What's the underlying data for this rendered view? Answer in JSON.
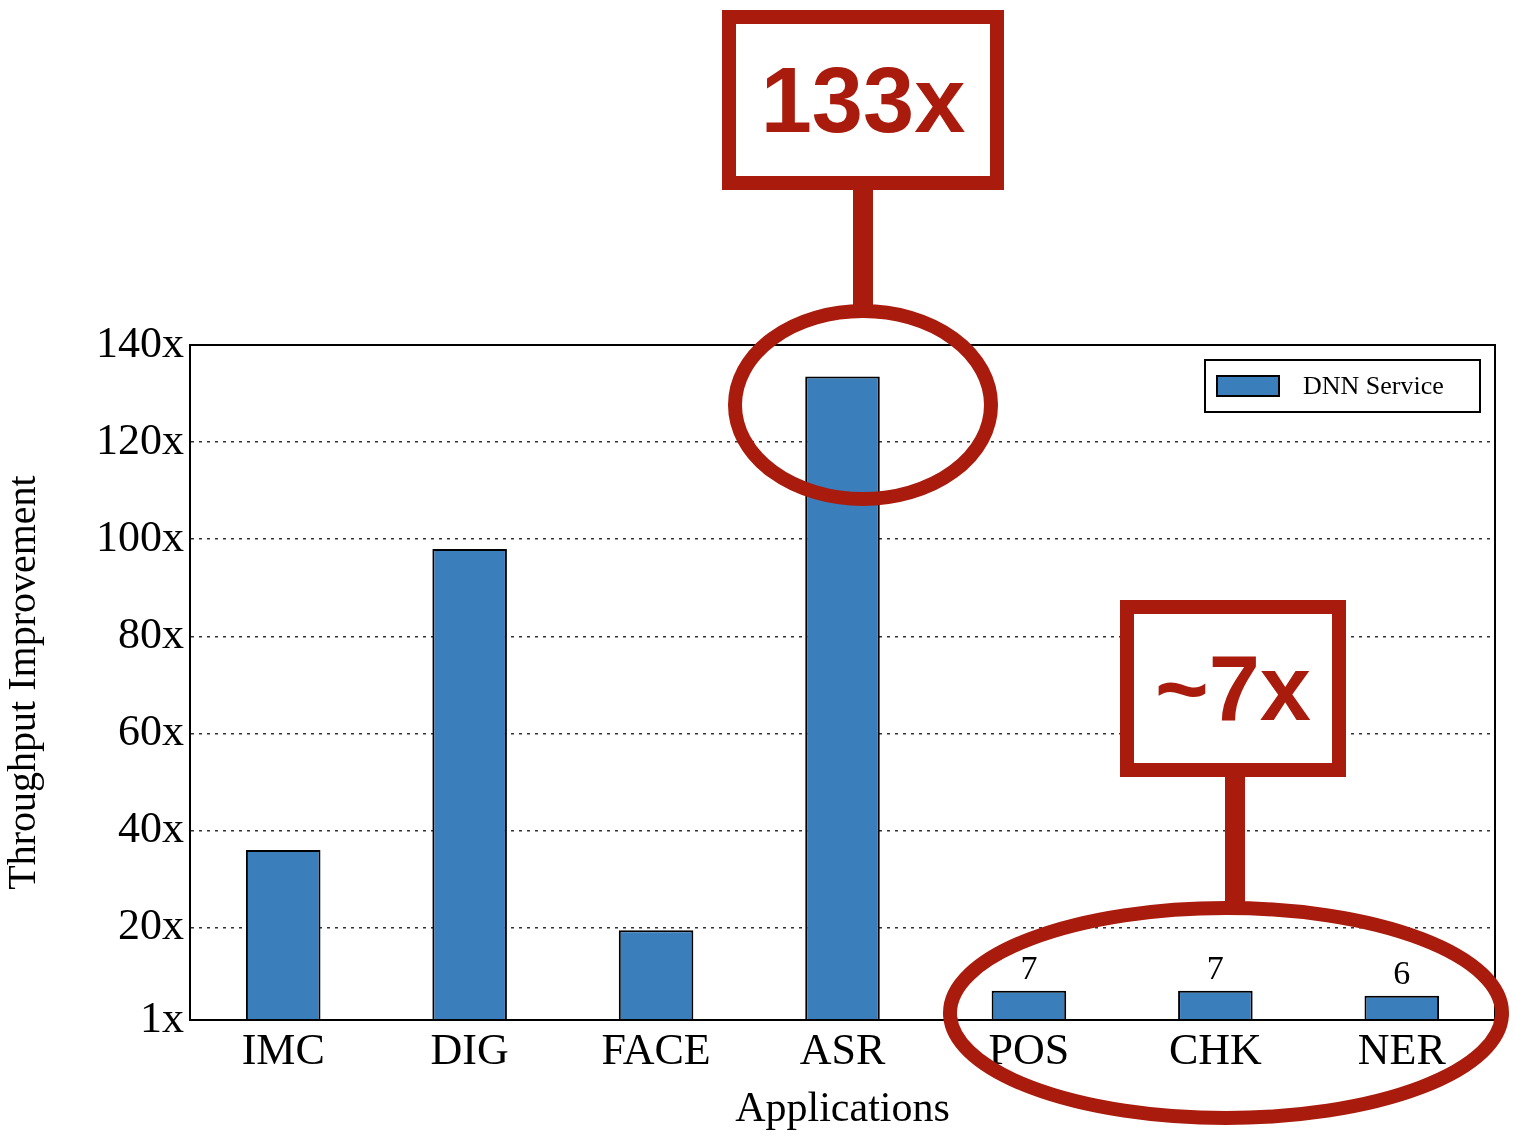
{
  "chart_data": {
    "type": "bar",
    "xlabel": "Applications",
    "ylabel": "Throughput Improvement",
    "categories": [
      "IMC",
      "DIG",
      "FACE",
      "ASR",
      "POS",
      "CHK",
      "NER"
    ],
    "series": [
      {
        "name": "DNN Service",
        "color": "#3a7ebb",
        "values": [
          36,
          98,
          19.5,
          133.5,
          7,
          7,
          6
        ],
        "value_labels": [
          null,
          null,
          null,
          null,
          "7",
          "7",
          "6"
        ]
      }
    ],
    "ylim": [
      1,
      140
    ],
    "yticks": [
      {
        "value": 1,
        "label": "1x"
      },
      {
        "value": 20,
        "label": "20x"
      },
      {
        "value": 40,
        "label": "40x"
      },
      {
        "value": 60,
        "label": "60x"
      },
      {
        "value": 80,
        "label": "80x"
      },
      {
        "value": 100,
        "label": "100x"
      },
      {
        "value": 120,
        "label": "120x"
      },
      {
        "value": 140,
        "label": "140x"
      }
    ],
    "grid": "y",
    "legend": "top right",
    "annotations": [
      "133x",
      "~7x"
    ]
  }
}
